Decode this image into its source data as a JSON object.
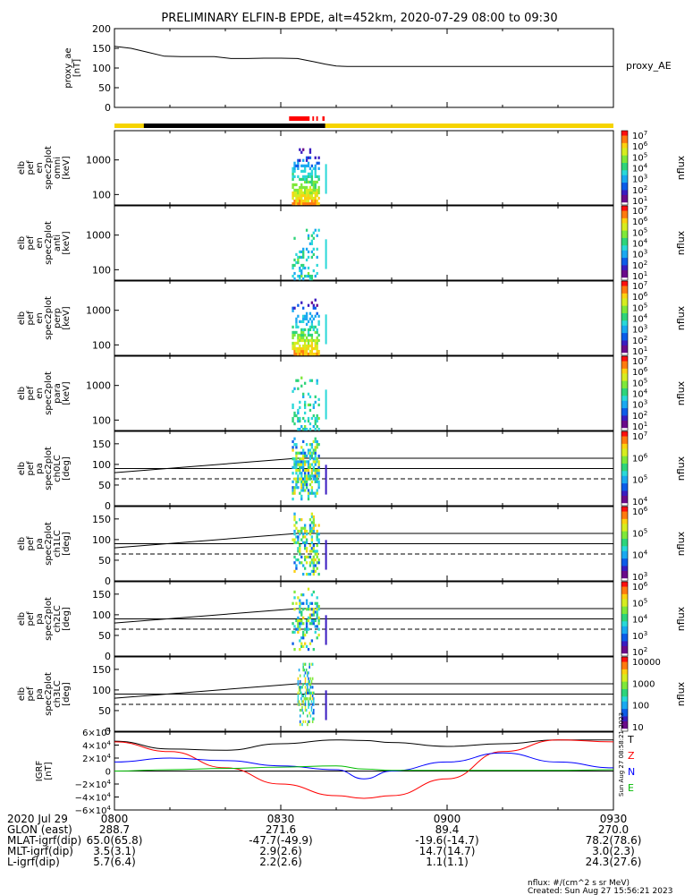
{
  "title": "PRELIMINARY ELFIN-B EPDE, alt=452km, 2020-07-29 08:00 to 09:30",
  "colors": {
    "ephemeris_bar": "#f6d400",
    "ephemeris_dark": "#000000",
    "science_marks": "#ff0000",
    "grf_x": "#0000ff",
    "grf_y": "#00bb00",
    "grf_z": "#ff0000",
    "grf_total": "#000000"
  },
  "colorbar_label": "nflux",
  "footer": {
    "date_label": "2020 Jul 29",
    "rows": [
      {
        "label": "GLON (east)",
        "values": [
          "288.7",
          "271.6",
          "89.4",
          "270.0"
        ]
      },
      {
        "label": "MLAT-igrf(dip)",
        "values": [
          "65.0(65.8)",
          "-47.7(-49.9)",
          "-19.6(-14.7)",
          "78.2(78.6)"
        ]
      },
      {
        "label": "MLT-igrf(dip)",
        "values": [
          "3.5(3.1)",
          "2.9(2.6)",
          "14.7(14.7)",
          "3.0(2.3)"
        ]
      },
      {
        "label": "L-igrf(dip)",
        "values": [
          "5.7(6.4)",
          "2.2(2.6)",
          "1.1(1.1)",
          "24.3(27.6)"
        ]
      }
    ],
    "time_ticks": [
      "0800",
      "0830",
      "0900",
      "0930"
    ],
    "units_note": "nflux: #/(cm^2 s sr MeV)",
    "created": "Created: Sun Aug 27 15:56:21 2023",
    "side_stamp": "Sun Aug 27 08:58:21 2023"
  },
  "chart_data": [
    {
      "type": "line",
      "ylabel": "proxy_ae\n[nT]",
      "legend": "proxy_AE",
      "ylim": [
        0,
        200
      ],
      "yticks": [
        "200",
        "150",
        "100",
        "50",
        "0"
      ],
      "x_minutes": [
        0,
        3,
        6,
        9,
        12,
        15,
        18,
        21,
        24,
        27,
        30,
        33,
        36,
        38,
        40,
        42,
        45,
        50,
        60,
        70,
        80,
        90
      ],
      "values": [
        155,
        150,
        140,
        130,
        129,
        129,
        129,
        124,
        124,
        125,
        125,
        124,
        116,
        110,
        105,
        104,
        104,
        104,
        104,
        104,
        104,
        104
      ]
    },
    {
      "type": "heatmap",
      "ylabel": "elb\npef\nen\nspec2plot\nomni\n[keV]",
      "ylim": [
        50,
        7000
      ],
      "yticks": [
        "1000",
        "100"
      ],
      "colorbar_ticks": [
        "10^7",
        "10^6",
        "10^5",
        "10^4",
        "10^3",
        "10^2",
        "10^1"
      ],
      "active_minutes": [
        32,
        37
      ]
    },
    {
      "type": "heatmap",
      "ylabel": "elb\npef\nen\nspec2plot\nanti\n[keV]",
      "ylim": [
        50,
        7000
      ],
      "yticks": [
        "1000",
        "100"
      ],
      "colorbar_ticks": [
        "10^7",
        "10^6",
        "10^5",
        "10^4",
        "10^3",
        "10^2",
        "10^1"
      ],
      "active_minutes": [
        32,
        37
      ]
    },
    {
      "type": "heatmap",
      "ylabel": "elb\npef\nen\nspec2plot\nperp\n[keV]",
      "ylim": [
        50,
        7000
      ],
      "yticks": [
        "1000",
        "100"
      ],
      "colorbar_ticks": [
        "10^7",
        "10^6",
        "10^5",
        "10^4",
        "10^3",
        "10^2",
        "10^1"
      ],
      "active_minutes": [
        32,
        37
      ]
    },
    {
      "type": "heatmap",
      "ylabel": "elb\npef\nen\nspec2plot\npara\n[keV]",
      "ylim": [
        50,
        7000
      ],
      "yticks": [
        "1000",
        "100"
      ],
      "colorbar_ticks": [
        "10^7",
        "10^6",
        "10^5",
        "10^4",
        "10^3",
        "10^2",
        "10^1"
      ],
      "active_minutes": [
        32,
        37
      ]
    },
    {
      "type": "heatmap",
      "ylabel": "elb\npef\npa\nspec2plot\nch0LC\n[deg]",
      "ylim": [
        0,
        180
      ],
      "yticks": [
        "150",
        "100",
        "50",
        "0"
      ],
      "colorbar_ticks": [
        "10^7",
        "10^6",
        "10^5",
        "10^4"
      ],
      "active_minutes": [
        32,
        37
      ]
    },
    {
      "type": "heatmap",
      "ylabel": "elb\npef\npa\nspec2plot\nch1LC\n[deg]",
      "ylim": [
        0,
        180
      ],
      "yticks": [
        "150",
        "100",
        "50",
        "0"
      ],
      "colorbar_ticks": [
        "10^6",
        "10^5",
        "10^4",
        "10^3"
      ],
      "active_minutes": [
        32,
        37
      ]
    },
    {
      "type": "heatmap",
      "ylabel": "elb\npef\npa\nspec2plot\nch2LC\n[deg]",
      "ylim": [
        0,
        180
      ],
      "yticks": [
        "150",
        "100",
        "50",
        "0"
      ],
      "colorbar_ticks": [
        "10^6",
        "10^5",
        "10^4",
        "10^3",
        "10^2"
      ],
      "active_minutes": [
        32,
        37
      ]
    },
    {
      "type": "heatmap",
      "ylabel": "elb\npef\npa\nspec2plot\nch3LC\n[deg]",
      "ylim": [
        0,
        180
      ],
      "yticks": [
        "150",
        "100",
        "50",
        "0"
      ],
      "colorbar_ticks": [
        "10000",
        "1000",
        "100",
        "10"
      ],
      "active_minutes": [
        33,
        36
      ]
    },
    {
      "type": "line",
      "ylabel": "IGRF\n[nT]",
      "ylim": [
        -60000,
        60000
      ],
      "yticks": [
        "6×10^4",
        "4×10^4",
        "2×10^4",
        "0",
        "−2×10^4",
        "−4×10^4",
        "−6×10^4"
      ],
      "legend": [
        "T",
        "Z",
        "N",
        "E"
      ],
      "x_minutes": [
        0,
        10,
        20,
        30,
        40,
        45,
        50,
        60,
        70,
        80,
        90
      ],
      "series": [
        {
          "name": "T",
          "values": [
            46000,
            34000,
            32000,
            42000,
            48000,
            47000,
            44000,
            38000,
            42000,
            48000,
            48000
          ]
        },
        {
          "name": "Z",
          "values": [
            45000,
            30000,
            5000,
            -20000,
            -38000,
            -42000,
            -38000,
            -12000,
            30000,
            48000,
            45000
          ]
        },
        {
          "name": "N",
          "values": [
            14000,
            20000,
            16000,
            8000,
            2000,
            -12000,
            0,
            14000,
            28000,
            14000,
            5000
          ]
        },
        {
          "name": "E",
          "values": [
            0,
            2000,
            4000,
            6000,
            8000,
            3000,
            1000,
            1000,
            1000,
            1000,
            2000
          ]
        }
      ]
    }
  ]
}
